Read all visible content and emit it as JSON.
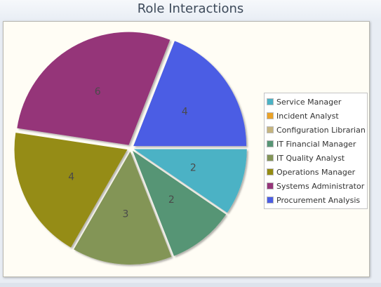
{
  "chart_data": {
    "type": "pie",
    "title": "Role Interactions",
    "start_angle_deg": 0,
    "direction": "clockwise",
    "slices": [
      {
        "name": "Service Manager",
        "value": 2,
        "color": "#4bb2c5"
      },
      {
        "name": "Incident Analyst",
        "value": 0,
        "color": "#eaa228"
      },
      {
        "name": "Configuration Librarian",
        "value": 0,
        "color": "#c5b47f"
      },
      {
        "name": "IT Financial Manager",
        "value": 2,
        "color": "#579575"
      },
      {
        "name": "IT Quality Analyst",
        "value": 3,
        "color": "#839557"
      },
      {
        "name": "Operations Manager",
        "value": 4,
        "color": "#958c12"
      },
      {
        "name": "Systems Administrator",
        "value": 6,
        "color": "#953579"
      },
      {
        "name": "Procurement Analysis",
        "value": 4,
        "color": "#4b5de4"
      }
    ],
    "legend_position": "right"
  }
}
